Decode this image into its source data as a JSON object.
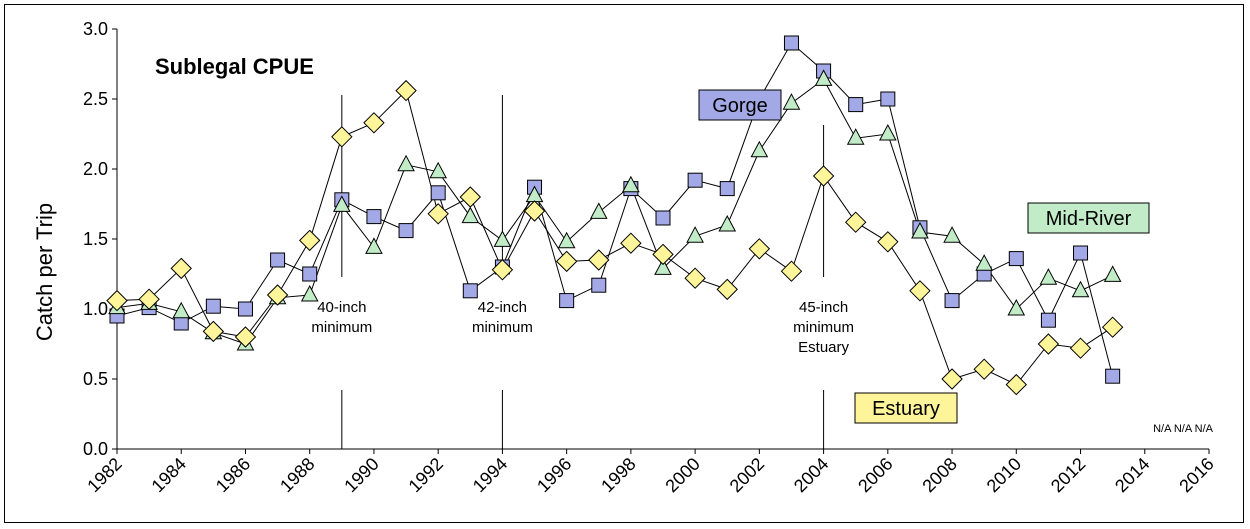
{
  "chart_data": {
    "type": "line",
    "title": "Sublegal CPUE",
    "xlabel": "",
    "ylabel": "Catch per Trip",
    "xlim": [
      1982,
      2016
    ],
    "ylim": [
      0,
      3.0
    ],
    "x_ticks": [
      "1982",
      "1984",
      "1986",
      "1988",
      "1990",
      "1992",
      "1994",
      "1996",
      "1998",
      "2000",
      "2002",
      "2004",
      "2006",
      "2008",
      "2010",
      "2012",
      "2014",
      "2016"
    ],
    "y_ticks": [
      "0.0",
      "0.5",
      "1.0",
      "1.5",
      "2.0",
      "2.5",
      "3.0"
    ],
    "grid": false,
    "legend": "inline labels near series",
    "x": [
      1982,
      1983,
      1984,
      1985,
      1986,
      1987,
      1988,
      1989,
      1990,
      1991,
      1992,
      1993,
      1994,
      1995,
      1996,
      1997,
      1998,
      1999,
      2000,
      2001,
      2002,
      2003,
      2004,
      2005,
      2006,
      2007,
      2008,
      2009,
      2010,
      2011,
      2012,
      2013
    ],
    "series": [
      {
        "name": "Gorge",
        "marker": "square",
        "color": "#a3a8e6",
        "values": [
          0.95,
          1.01,
          0.9,
          1.02,
          1.0,
          1.35,
          1.25,
          1.78,
          1.66,
          1.56,
          1.83,
          1.13,
          1.3,
          1.87,
          1.06,
          1.17,
          1.86,
          1.65,
          1.92,
          1.86,
          2.5,
          2.9,
          2.7,
          2.46,
          2.5,
          1.58,
          1.06,
          1.25,
          1.36,
          0.92,
          1.4,
          0.52
        ]
      },
      {
        "name": "Mid-River",
        "marker": "triangle",
        "color": "#c2ecc7",
        "values": [
          1.01,
          1.04,
          0.98,
          0.83,
          0.75,
          1.08,
          1.1,
          1.74,
          1.44,
          2.03,
          1.98,
          1.66,
          1.49,
          1.81,
          1.48,
          1.69,
          1.88,
          1.29,
          1.52,
          1.6,
          2.13,
          2.47,
          2.64,
          2.22,
          2.25,
          1.55,
          1.52,
          1.32,
          1.0,
          1.22,
          1.13,
          1.24
        ]
      },
      {
        "name": "Estuary",
        "marker": "diamond",
        "color": "#fef59a",
        "values": [
          1.06,
          1.07,
          1.29,
          0.84,
          0.8,
          1.1,
          1.49,
          2.23,
          2.33,
          2.56,
          1.68,
          1.8,
          1.28,
          1.7,
          1.34,
          1.35,
          1.47,
          1.39,
          1.22,
          1.14,
          1.43,
          1.27,
          1.95,
          1.62,
          1.48,
          1.13,
          0.5,
          0.57,
          0.46,
          0.75,
          0.72,
          0.87
        ]
      }
    ],
    "annotations": [
      {
        "year": 1989,
        "lines": [
          "40-inch",
          "minimum"
        ]
      },
      {
        "year": 1994,
        "lines": [
          "42-inch",
          "minimum"
        ]
      },
      {
        "year": 2004,
        "lines": [
          "45-inch",
          "minimum",
          "Estuary"
        ]
      }
    ],
    "na_label": "N/A N/A N/A"
  }
}
